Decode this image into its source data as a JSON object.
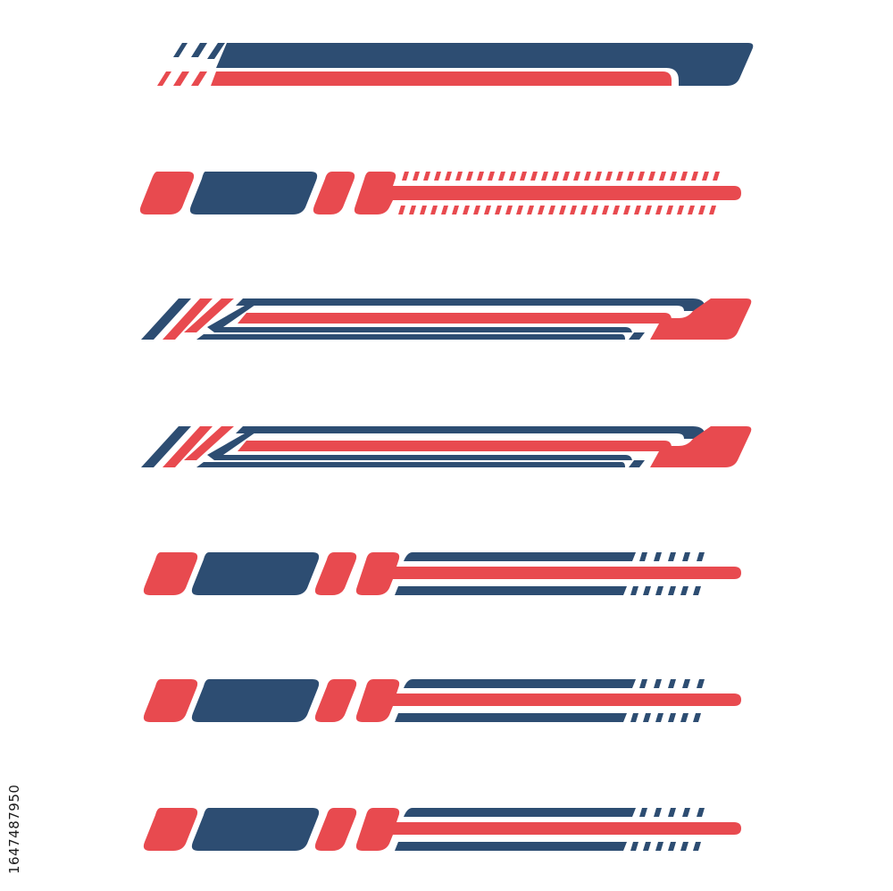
{
  "stock_id": "1647487950",
  "colors": {
    "red": "#e84a4f",
    "navy": "#2d4d72",
    "background": "#ffffff"
  },
  "stripes": [
    {
      "name": "stripe-design-1",
      "style": "swoosh-bar"
    },
    {
      "name": "stripe-design-2",
      "style": "blocks-with-dashed-rails"
    },
    {
      "name": "stripe-design-3",
      "style": "chevron-lines"
    },
    {
      "name": "stripe-design-4",
      "style": "chevron-lines"
    },
    {
      "name": "stripe-design-5",
      "style": "blocks-with-lines-and-dashes"
    },
    {
      "name": "stripe-design-6",
      "style": "blocks-with-lines-and-dashes"
    },
    {
      "name": "stripe-design-7",
      "style": "blocks-with-lines-and-dashes"
    }
  ]
}
